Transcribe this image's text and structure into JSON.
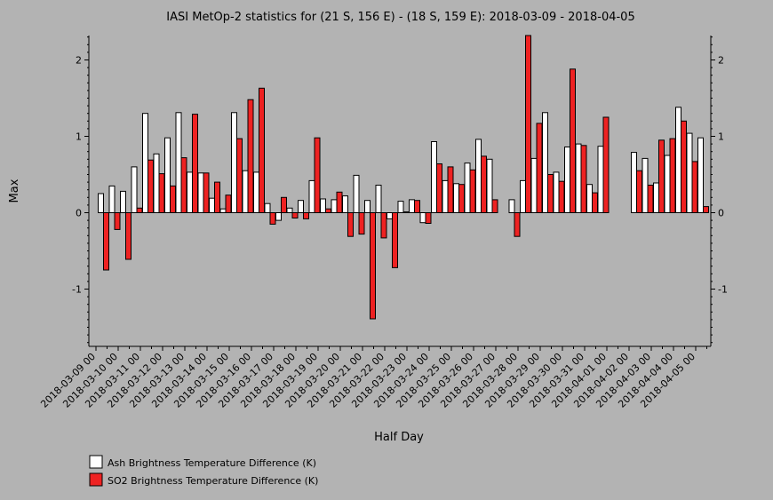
{
  "chart_data": {
    "type": "bar",
    "title": "IASI MetOp-2 statistics for (21 S, 156 E) - (18 S, 159 E): 2018-03-09 - 2018-04-05",
    "xlabel": "Half Day",
    "ylabel": "Max",
    "ylim": [
      -1.75,
      2.33
    ],
    "yticks": [
      -1,
      0,
      1,
      2
    ],
    "grid": false,
    "legend_position": "bottom-left",
    "x_tick_labels": [
      "2018-03-09 00",
      "2018-03-10 00",
      "2018-03-11 00",
      "2018-03-12 00",
      "2018-03-13 00",
      "2018-03-14 00",
      "2018-03-15 00",
      "2018-03-16 00",
      "2018-03-17 00",
      "2018-03-18 00",
      "2018-03-19 00",
      "2018-03-20 00",
      "2018-03-21 00",
      "2018-03-22 00",
      "2018-03-23 00",
      "2018-03-24 00",
      "2018-03-25 00",
      "2018-03-26 00",
      "2018-03-27 00",
      "2018-03-28 00",
      "2018-03-29 00",
      "2018-03-30 00",
      "2018-03-31 00",
      "2018-04-01 00",
      "2018-04-02 00",
      "2018-04-03 00",
      "2018-04-04 00",
      "2018-04-05 00"
    ],
    "series": [
      {
        "name": "Ash Brightness Temperature Difference (K)",
        "color": "#ffffff",
        "values": [
          0.25,
          0.35,
          0.28,
          0.6,
          1.3,
          0.77,
          0.98,
          1.31,
          0.53,
          0.52,
          0.19,
          0.05,
          1.31,
          0.55,
          0.53,
          0.12,
          -0.1,
          0.06,
          0.16,
          0.42,
          0.18,
          0.17,
          0.22,
          0.49,
          0.16,
          0.36,
          -0.08,
          0.15,
          0.17,
          -0.13,
          0.93,
          0.42,
          0.38,
          0.65,
          0.96,
          0.7,
          null,
          0.17,
          0.42,
          0.71,
          1.31,
          0.53,
          0.86,
          0.9,
          0.37,
          0.87,
          null,
          null,
          0.79,
          0.71,
          0.39,
          0.75,
          1.38,
          1.04,
          0.98
        ]
      },
      {
        "name": "SO2 Brightness Temperature Difference (K)",
        "color": "#ee2222",
        "values": [
          -0.75,
          -0.22,
          -0.61,
          0.06,
          0.69,
          0.51,
          0.35,
          0.72,
          1.29,
          0.52,
          0.4,
          0.23,
          0.97,
          1.48,
          1.63,
          -0.15,
          0.2,
          -0.07,
          -0.08,
          0.98,
          0.05,
          0.27,
          -0.31,
          -0.28,
          -1.39,
          -0.33,
          -0.72,
          0.01,
          0.16,
          -0.14,
          0.64,
          0.6,
          0.37,
          0.56,
          0.74,
          0.17,
          null,
          -0.31,
          2.33,
          1.17,
          0.5,
          0.41,
          1.88,
          0.88,
          0.26,
          1.25,
          null,
          null,
          0.55,
          0.36,
          0.95,
          0.97,
          1.2,
          0.67,
          0.08
        ]
      }
    ]
  }
}
